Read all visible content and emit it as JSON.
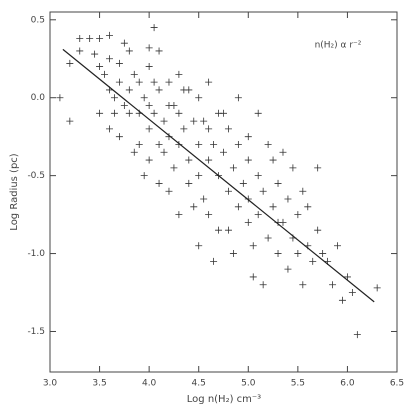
{
  "chart_data": {
    "type": "scatter",
    "xlabel": "Log n(H₂) cm⁻³",
    "ylabel": "Log Radius (pc)",
    "annotation": "n(H₂) α r⁻²",
    "color": "#333333",
    "xlim": [
      3.0,
      6.5
    ],
    "ylim": [
      -1.76,
      0.55
    ],
    "xticks": [
      {
        "value": 3.0,
        "label": "3.0"
      },
      {
        "value": 3.5,
        "label": "3.5"
      },
      {
        "value": 4.0,
        "label": "4.0"
      },
      {
        "value": 4.5,
        "label": "4.5"
      },
      {
        "value": 5.0,
        "label": "5.0"
      },
      {
        "value": 5.5,
        "label": "5.5"
      },
      {
        "value": 6.0,
        "label": "6.0"
      },
      {
        "value": 6.5,
        "label": "6.5"
      }
    ],
    "yticks": [
      0.5,
      {
        "value": 0.0,
        "label": "0.0"
      },
      -0.5,
      {
        "value": -1.0,
        "label": "-1.0"
      },
      -1.5
    ],
    "x": [
      3.1,
      3.2,
      3.2,
      3.3,
      3.4,
      3.5,
      3.6,
      3.3,
      3.45,
      3.5,
      3.55,
      3.6,
      3.6,
      3.65,
      3.7,
      3.7,
      3.75,
      3.8,
      3.8,
      3.85,
      3.9,
      3.9,
      3.95,
      4.0,
      4.0,
      4.05,
      4.1,
      3.5,
      3.6,
      3.7,
      3.8,
      3.85,
      3.9,
      4.0,
      4.0,
      4.0,
      4.05,
      4.1,
      4.1,
      4.15,
      4.2,
      4.2,
      4.2,
      4.25,
      4.3,
      4.3,
      4.3,
      4.35,
      4.4,
      4.4,
      4.4,
      4.45,
      4.5,
      4.5,
      4.5,
      4.55,
      4.6,
      4.6,
      4.6,
      4.65,
      4.7,
      4.7,
      4.7,
      4.75,
      4.8,
      4.8,
      4.85,
      4.9,
      4.9,
      4.95,
      5.0,
      5.0,
      5.0,
      5.05,
      5.1,
      5.1,
      5.15,
      5.2,
      5.2,
      5.25,
      5.3,
      5.3,
      5.35,
      5.4,
      5.4,
      5.45,
      5.5,
      5.5,
      5.55,
      5.6,
      5.6,
      5.65,
      5.7,
      5.75,
      5.8,
      5.85,
      5.9,
      6.0,
      6.05,
      6.1,
      6.3,
      5.95,
      4.65,
      4.3,
      4.2,
      4.1,
      4.85,
      5.05,
      5.15,
      4.5,
      4.75,
      4.9,
      5.0,
      5.1,
      5.25,
      5.45,
      3.95,
      4.45,
      4.55,
      4.05,
      3.75,
      4.35,
      4.6,
      5.35,
      5.55,
      5.7,
      4.25,
      4.15,
      3.65,
      4.8,
      5.3
    ],
    "values": [
      0.0,
      0.22,
      -0.15,
      0.38,
      0.38,
      0.38,
      0.4,
      0.3,
      0.28,
      0.2,
      0.15,
      0.05,
      0.25,
      0.0,
      0.1,
      0.22,
      -0.05,
      0.05,
      0.3,
      0.15,
      0.1,
      -0.1,
      0.0,
      0.2,
      0.32,
      0.45,
      0.3,
      -0.1,
      -0.2,
      -0.25,
      -0.1,
      -0.35,
      -0.3,
      -0.05,
      -0.2,
      -0.4,
      -0.1,
      0.05,
      -0.3,
      -0.15,
      0.1,
      -0.05,
      -0.25,
      -0.45,
      0.15,
      -0.1,
      -0.3,
      -0.2,
      0.05,
      -0.4,
      -0.55,
      -0.15,
      -0.3,
      0.0,
      -0.5,
      -0.65,
      -0.2,
      -0.4,
      -0.75,
      -0.3,
      -0.1,
      -0.5,
      -0.85,
      -0.35,
      -0.6,
      -0.2,
      -0.45,
      -0.7,
      -0.3,
      -0.55,
      -0.4,
      -0.8,
      -0.65,
      -0.95,
      -0.5,
      -0.75,
      -0.6,
      -0.9,
      -0.3,
      -0.7,
      -0.55,
      -1.0,
      -0.8,
      -0.65,
      -1.1,
      -0.9,
      -0.75,
      -1.0,
      -1.2,
      -0.95,
      -0.7,
      -1.05,
      -0.85,
      -1.0,
      -1.05,
      -1.2,
      -0.95,
      -1.15,
      -1.25,
      -1.52,
      -1.22,
      -1.3,
      -1.05,
      -0.75,
      -0.6,
      -0.55,
      -1.0,
      -1.15,
      -1.2,
      -0.95,
      -0.1,
      0.0,
      -0.25,
      -0.1,
      -0.4,
      -0.45,
      -0.5,
      -0.7,
      -0.15,
      0.1,
      0.35,
      0.05,
      0.1,
      -0.35,
      -0.6,
      -0.45,
      -0.05,
      -0.35,
      -0.1,
      -0.85,
      -0.8
    ],
    "fit_line": {
      "x": [
        3.13,
        6.27
      ],
      "values": [
        0.31,
        -1.31
      ]
    }
  }
}
